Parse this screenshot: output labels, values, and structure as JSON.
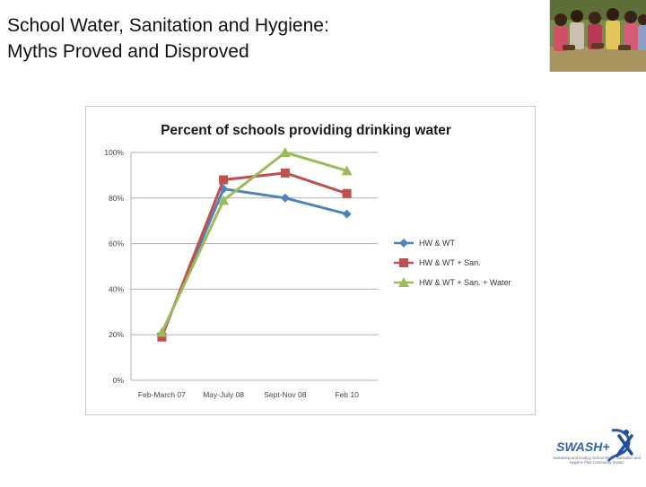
{
  "slide": {
    "title_line1": "School Water, Sanitation and Hygiene:",
    "title_line2": "Myths Proved and Disproved"
  },
  "logo": {
    "text": "SWASH+",
    "tagline": "Sustaining and Scaling School Water, Sanitation and Hygiene Plus Community Impact"
  },
  "colors": {
    "series": [
      "#4f81bd",
      "#c0504d",
      "#9bbb59"
    ],
    "grid": "#b0b0b0",
    "frame": "#c8c8c8"
  },
  "chart_data": {
    "type": "line",
    "title": "Percent of schools providing drinking water",
    "categories": [
      "Feb-March 07",
      "May-July 08",
      "Sept-Nov 08",
      "Feb 10"
    ],
    "series": [
      {
        "name": "HW & WT",
        "values": [
          20,
          84,
          80,
          73
        ]
      },
      {
        "name": "HW & WT + San.",
        "values": [
          19,
          88,
          91,
          82
        ]
      },
      {
        "name": "HW & WT + San. + Water",
        "values": [
          21,
          79,
          100,
          92
        ]
      }
    ],
    "yticks": [
      "0%",
      "20%",
      "40%",
      "60%",
      "80%",
      "100%"
    ],
    "ylim": [
      0,
      100
    ],
    "grid": true,
    "legend": "right",
    "markers": [
      "diamond",
      "square",
      "triangle"
    ]
  }
}
